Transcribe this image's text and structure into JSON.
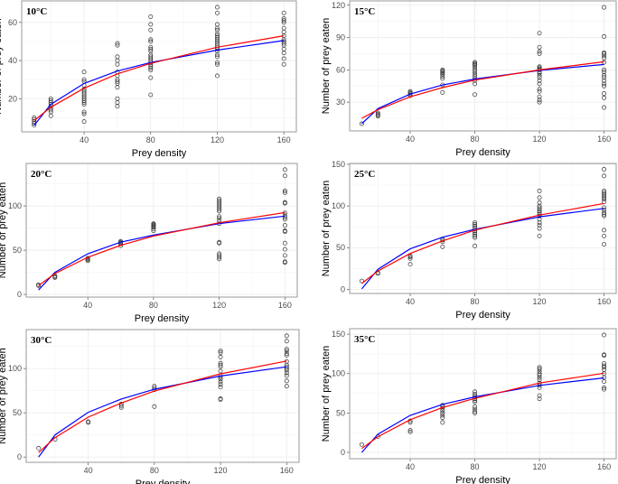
{
  "chart_data": [
    {
      "type": "scatter",
      "title": "10°C",
      "xlabel": "Prey density",
      "ylabel": "Number of prey eaten",
      "xlim": [
        2.5,
        167.5
      ],
      "ylim": [
        2.6,
        71.3
      ],
      "xticks": [
        40,
        80,
        120,
        160
      ],
      "yticks": [
        20,
        40,
        60
      ],
      "grid": true,
      "points": {
        "10": [
          6,
          7,
          8,
          9,
          10
        ],
        "20": [
          11,
          13,
          14,
          15,
          16,
          17,
          18,
          19,
          20
        ],
        "40": [
          8,
          12,
          13,
          17,
          18,
          19,
          20,
          21,
          22,
          23,
          24,
          25,
          27,
          29,
          30,
          34
        ],
        "60": [
          16,
          18,
          20,
          26,
          28,
          29,
          30,
          32,
          34,
          38,
          40,
          42,
          48,
          49
        ],
        "80": [
          22,
          31,
          35,
          36,
          37,
          38,
          39,
          40,
          41,
          42,
          43,
          45,
          46,
          47,
          50,
          51,
          56,
          59,
          63
        ],
        "120": [
          32,
          38,
          39,
          42,
          43,
          45,
          46,
          47,
          48,
          49,
          50,
          51,
          52,
          53,
          54,
          56,
          57,
          59,
          65,
          68
        ],
        "160": [
          38,
          41,
          44,
          46,
          48,
          49,
          50,
          51,
          53,
          55,
          57,
          60,
          61,
          62,
          65
        ]
      },
      "series": [
        {
          "name": "blue",
          "color": "#0000ff",
          "x": [
            10,
            20,
            40,
            60,
            80,
            120,
            160
          ],
          "y": [
            6,
            17,
            28,
            34.5,
            39,
            45.5,
            50.5
          ]
        },
        {
          "name": "red",
          "color": "#ff0000",
          "x": [
            10,
            20,
            40,
            60,
            80,
            120,
            160
          ],
          "y": [
            8.5,
            15.5,
            25.5,
            33,
            38.5,
            47,
            53
          ]
        }
      ]
    },
    {
      "type": "scatter",
      "title": "15°C",
      "xlabel": "Prey density",
      "ylabel": "Number of prey eaten",
      "xlim": [
        2.5,
        167.5
      ],
      "ylim": [
        3.3,
        124
      ],
      "xticks": [
        40,
        80,
        120,
        160
      ],
      "yticks": [
        30,
        60,
        90,
        120
      ],
      "grid": true,
      "points": {
        "10": [
          10
        ],
        "20": [
          17,
          18,
          19,
          20
        ],
        "40": [
          36,
          37,
          38,
          39,
          40
        ],
        "60": [
          39,
          46,
          52,
          54,
          56,
          57,
          58,
          59,
          60
        ],
        "80": [
          37,
          47,
          50,
          52,
          54,
          56,
          58,
          60,
          62,
          64,
          65,
          66,
          67
        ],
        "120": [
          30,
          32,
          35,
          40,
          42,
          47,
          50,
          53,
          55,
          57,
          58,
          60,
          61,
          62,
          63,
          75,
          77,
          81,
          94
        ],
        "160": [
          25,
          34,
          38,
          45,
          47,
          50,
          53,
          55,
          58,
          60,
          67,
          71,
          73,
          75,
          76,
          91,
          118
        ]
      },
      "series": [
        {
          "name": "blue",
          "color": "#0000ff",
          "x": [
            10,
            20,
            40,
            60,
            80,
            120,
            160
          ],
          "y": [
            10,
            24,
            37.5,
            46,
            51.5,
            59.5,
            65
          ]
        },
        {
          "name": "red",
          "color": "#ff0000",
          "x": [
            10,
            20,
            40,
            60,
            80,
            120,
            160
          ],
          "y": [
            15,
            23,
            35,
            43.5,
            50.5,
            60,
            67.5
          ]
        }
      ]
    },
    {
      "type": "scatter",
      "title": "20°C",
      "xlabel": "Prey density",
      "ylabel": "Number of prey eaten",
      "xlim": [
        2.5,
        167.5
      ],
      "ylim": [
        -3,
        148
      ],
      "xticks": [
        40,
        80,
        120,
        160
      ],
      "yticks": [
        0,
        50,
        100
      ],
      "grid": true,
      "points": {
        "10": [
          10,
          11
        ],
        "20": [
          19,
          20,
          21
        ],
        "40": [
          38,
          39,
          40,
          41
        ],
        "60": [
          55,
          57,
          58,
          59,
          60
        ],
        "80": [
          72,
          74,
          76,
          77,
          78,
          79,
          80
        ],
        "120": [
          40,
          42,
          44,
          46,
          58,
          59,
          80,
          83,
          86,
          88,
          94,
          96,
          98,
          100,
          102,
          104,
          106,
          108
        ],
        "160": [
          36,
          37,
          44,
          51,
          58,
          71,
          72,
          78,
          85,
          87,
          89,
          92,
          103,
          104,
          115,
          117,
          134,
          141
        ]
      },
      "series": [
        {
          "name": "blue",
          "color": "#0000ff",
          "x": [
            10,
            20,
            40,
            60,
            80,
            120,
            160
          ],
          "y": [
            5,
            25,
            46,
            59,
            67,
            80,
            88.5
          ]
        },
        {
          "name": "red",
          "color": "#ff0000",
          "x": [
            10,
            20,
            40,
            60,
            80,
            120,
            160
          ],
          "y": [
            10,
            23.5,
            42,
            55.5,
            66,
            81,
            92.5
          ]
        }
      ]
    },
    {
      "type": "scatter",
      "title": "25°C",
      "xlabel": "Prey density",
      "ylabel": "Number of prey eaten",
      "xlim": [
        2.5,
        167.5
      ],
      "ylim": [
        -5,
        151
      ],
      "xticks": [
        40,
        80,
        120,
        160
      ],
      "yticks": [
        0,
        50,
        100,
        150
      ],
      "grid": true,
      "points": {
        "10": [
          10
        ],
        "20": [
          19,
          20
        ],
        "40": [
          30,
          37,
          39,
          40
        ],
        "60": [
          51,
          57,
          59,
          60
        ],
        "80": [
          52,
          62,
          64,
          66,
          68,
          70,
          72,
          74,
          76,
          78,
          80
        ],
        "120": [
          64,
          73,
          77,
          80,
          84,
          88,
          90,
          92,
          94,
          96,
          98,
          100,
          104,
          110,
          118
        ],
        "160": [
          54,
          64,
          71,
          88,
          90,
          92,
          95,
          98,
          105,
          108,
          110,
          112,
          114,
          116,
          118,
          136,
          144
        ]
      },
      "series": [
        {
          "name": "blue",
          "color": "#0000ff",
          "x": [
            10,
            20,
            40,
            60,
            80,
            120,
            160
          ],
          "y": [
            0.5,
            24,
            48.5,
            62.5,
            72,
            87,
            97
          ]
        },
        {
          "name": "red",
          "color": "#ff0000",
          "x": [
            10,
            20,
            40,
            60,
            80,
            120,
            160
          ],
          "y": [
            7,
            22,
            43,
            58,
            71,
            89,
            103
          ]
        }
      ]
    },
    {
      "type": "scatter",
      "title": "30°C",
      "xlabel": "Prey density",
      "ylabel": "Number of prey eaten",
      "xlim": [
        2.5,
        167.5
      ],
      "ylim": [
        -6,
        144
      ],
      "xticks": [
        40,
        80,
        120,
        160
      ],
      "yticks": [
        0,
        50,
        100
      ],
      "grid": true,
      "points": {
        "10": [
          10
        ],
        "20": [
          20
        ],
        "40": [
          39,
          40
        ],
        "60": [
          56,
          58,
          60
        ],
        "80": [
          57,
          76,
          78,
          80
        ],
        "120": [
          65,
          66,
          79,
          82,
          85,
          88,
          90,
          92,
          97,
          102,
          104,
          106,
          113,
          118,
          120
        ],
        "160": [
          80,
          86,
          92,
          95,
          98,
          100,
          102,
          104,
          108,
          115,
          117,
          120,
          122,
          131,
          137
        ]
      },
      "series": [
        {
          "name": "blue",
          "color": "#0000ff",
          "x": [
            10,
            20,
            40,
            60,
            80,
            120,
            160
          ],
          "y": [
            0,
            25,
            50.5,
            65.5,
            76.5,
            91.5,
            102
          ]
        },
        {
          "name": "red",
          "color": "#ff0000",
          "x": [
            10,
            20,
            40,
            60,
            80,
            120,
            160
          ],
          "y": [
            5,
            22,
            45,
            61,
            74.5,
            94,
            108.5
          ]
        }
      ]
    },
    {
      "type": "scatter",
      "title": "35°C",
      "xlabel": "Prey density",
      "ylabel": "Number of prey eaten",
      "xlim": [
        2.5,
        167.5
      ],
      "ylim": [
        -8,
        157
      ],
      "xticks": [
        40,
        80,
        120,
        160
      ],
      "yticks": [
        0,
        50,
        100,
        150
      ],
      "grid": true,
      "points": {
        "10": [
          10
        ],
        "20": [
          20
        ],
        "40": [
          26,
          28,
          38,
          40
        ],
        "60": [
          38,
          44,
          47,
          50,
          53,
          56,
          58,
          60
        ],
        "80": [
          50,
          52,
          55,
          58,
          64,
          66,
          68,
          70,
          72,
          74,
          77
        ],
        "120": [
          68,
          72,
          82,
          85,
          88,
          92,
          95,
          98,
          100,
          103,
          106,
          108
        ],
        "160": [
          80,
          82,
          90,
          95,
          100,
          105,
          108,
          110,
          113,
          123,
          124,
          149
        ]
      },
      "series": [
        {
          "name": "blue",
          "color": "#0000ff",
          "x": [
            10,
            20,
            40,
            60,
            80,
            120,
            160
          ],
          "y": [
            0,
            23,
            47,
            61,
            70.5,
            85,
            94.5
          ]
        },
        {
          "name": "red",
          "color": "#ff0000",
          "x": [
            10,
            20,
            40,
            60,
            80,
            120,
            160
          ],
          "y": [
            5,
            20,
            41.5,
            57,
            68.5,
            88,
            100.5
          ]
        }
      ]
    }
  ]
}
